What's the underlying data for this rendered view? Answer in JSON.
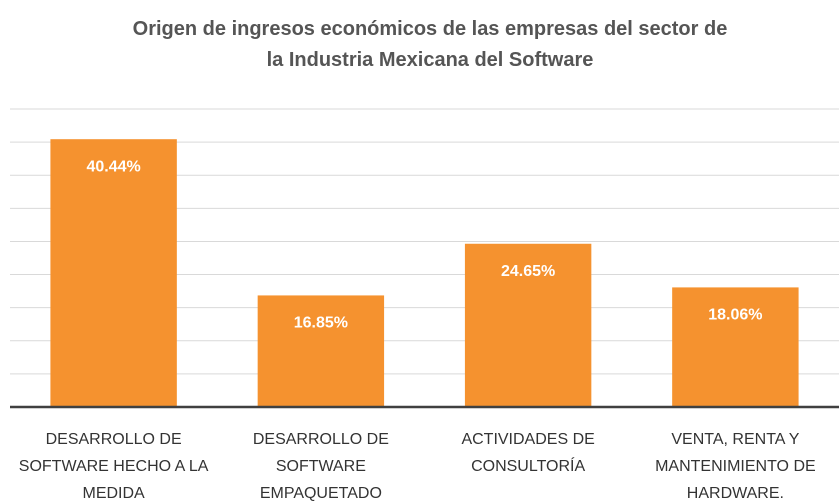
{
  "chart_data": {
    "type": "bar",
    "title": "Origen de ingresos económicos de las empresas del sector de la Industria Mexicana del Software",
    "categories": [
      "DESARROLLO DE SOFTWARE HECHO A LA MEDIDA",
      "DESARROLLO DE SOFTWARE EMPAQUETADO",
      "ACTIVIDADES DE CONSULTORÍA",
      "VENTA, RENTA Y MANTENIMIENTO DE HARDWARE."
    ],
    "values": [
      40.44,
      16.85,
      24.65,
      18.06
    ],
    "value_labels": [
      "40.44%",
      "16.85%",
      "24.65%",
      "18.06%"
    ],
    "color": "#f5922f",
    "ylim": [
      0,
      45
    ],
    "yticks": [
      0,
      5,
      10,
      15,
      20,
      25,
      30,
      35,
      40,
      45
    ],
    "grid": true
  }
}
